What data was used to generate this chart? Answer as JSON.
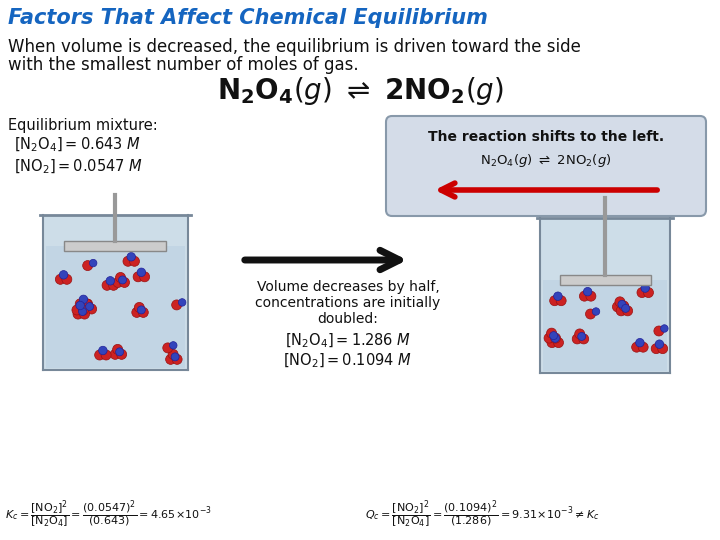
{
  "bg_color": "#ffffff",
  "title": "Factors That Affect Chemical Equilibrium",
  "title_color": "#1565C0",
  "title_fontsize": 15,
  "body_fontsize": 12,
  "body_text1": "When volume is decreased, the equilibrium is driven toward the side",
  "body_text2": "with the smallest number of moles of gas.",
  "arrow_right_color": "#111111",
  "arrow_left_color": "#cc0000",
  "box_face": "#d4dce8",
  "box_edge": "#8899aa",
  "beaker_face": "#c5d8e5",
  "beaker_edge": "#778899",
  "liquid_face": "#c0d4e4",
  "piston_face": "#cccccc",
  "rod_color": "#999999",
  "mol_red": "#cc2222",
  "mol_blue": "#3344bb"
}
